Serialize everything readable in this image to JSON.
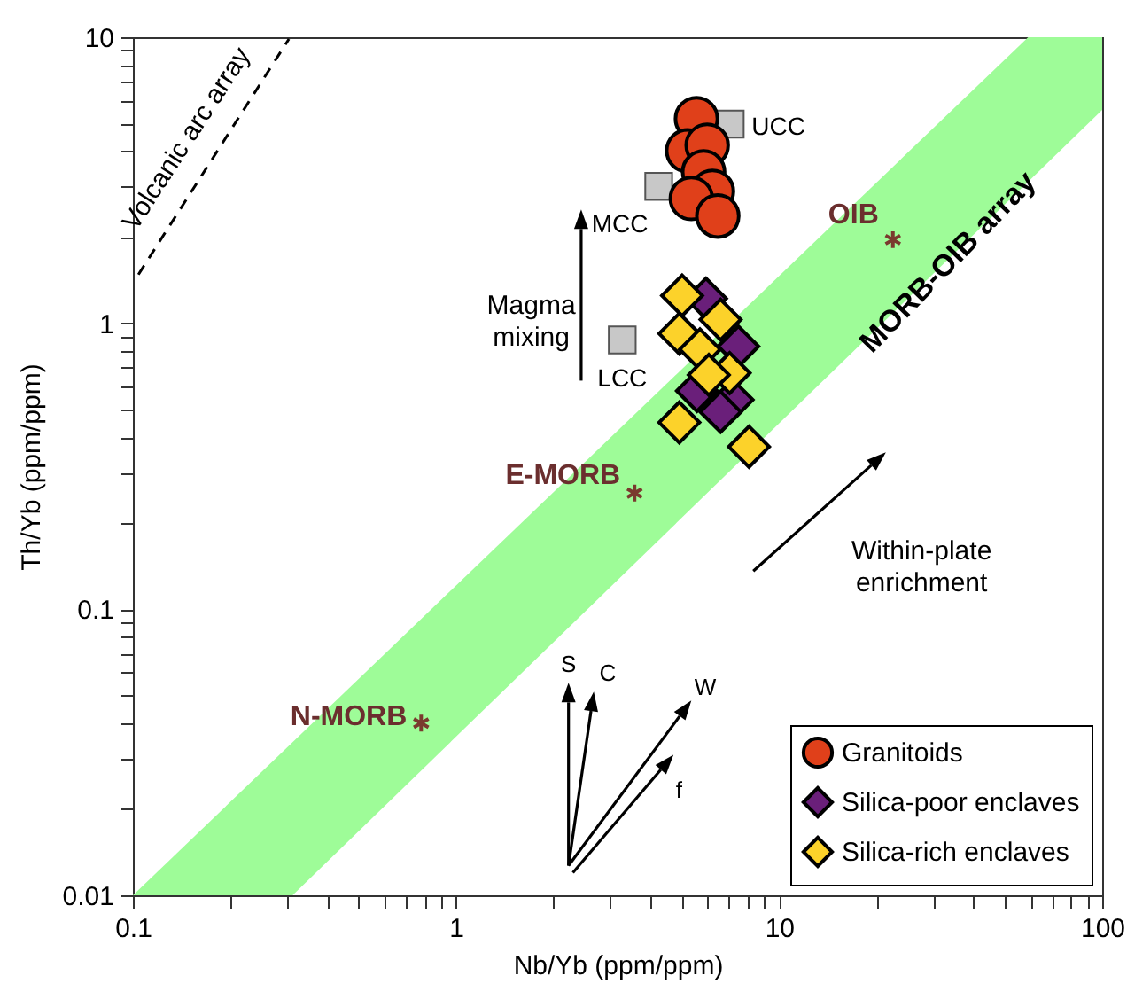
{
  "chart_data": {
    "type": "scatter",
    "xlabel": "Nb/Yb (ppm/ppm)",
    "ylabel": "Th/Yb (ppm/ppm)",
    "log": "xy",
    "grid": false,
    "legend": "bottom right",
    "xlim": [
      0.1,
      100
    ],
    "ylim": [
      0.01,
      10
    ],
    "xticks": [
      0.1,
      {
        "value": 0.2,
        "label": null
      },
      {
        "value": 0.3,
        "label": null
      },
      {
        "value": 0.4,
        "label": null
      },
      {
        "value": 0.5,
        "label": null
      },
      {
        "value": 0.6,
        "label": null
      },
      {
        "value": 0.7,
        "label": null
      },
      {
        "value": 0.8,
        "label": null
      },
      {
        "value": 0.9,
        "label": null
      },
      1,
      {
        "value": 2,
        "label": null
      },
      {
        "value": 3,
        "label": null
      },
      {
        "value": 4,
        "label": null
      },
      {
        "value": 5,
        "label": null
      },
      {
        "value": 6,
        "label": null
      },
      {
        "value": 7,
        "label": null
      },
      {
        "value": 8,
        "label": null
      },
      {
        "value": 9,
        "label": null
      },
      10,
      {
        "value": 20,
        "label": null
      },
      {
        "value": 30,
        "label": null
      },
      {
        "value": 40,
        "label": null
      },
      {
        "value": 50,
        "label": null
      },
      {
        "value": 60,
        "label": null
      },
      {
        "value": 70,
        "label": null
      },
      {
        "value": 80,
        "label": null
      },
      {
        "value": 90,
        "label": null
      },
      100
    ],
    "yticks": [
      0.01,
      {
        "value": 0.02,
        "label": null
      },
      {
        "value": 0.03,
        "label": null
      },
      {
        "value": 0.04,
        "label": null
      },
      {
        "value": 0.05,
        "label": null
      },
      {
        "value": 0.06,
        "label": null
      },
      {
        "value": 0.07,
        "label": null
      },
      {
        "value": 0.08,
        "label": null
      },
      {
        "value": 0.09,
        "label": null
      },
      0.1,
      {
        "value": 0.2,
        "label": null
      },
      {
        "value": 0.3,
        "label": null
      },
      {
        "value": 0.4,
        "label": null
      },
      {
        "value": 0.5,
        "label": null
      },
      {
        "value": 0.6,
        "label": null
      },
      {
        "value": 0.7,
        "label": null
      },
      {
        "value": 0.8,
        "label": null
      },
      {
        "value": 0.9,
        "label": null
      },
      1,
      {
        "value": 2,
        "label": null
      },
      {
        "value": 3,
        "label": null
      },
      {
        "value": 4,
        "label": null
      },
      {
        "value": 5,
        "label": null
      },
      {
        "value": 6,
        "label": null
      },
      {
        "value": 7,
        "label": null
      },
      {
        "value": 8,
        "label": null
      },
      {
        "value": 9,
        "label": null
      },
      10
    ],
    "series": [
      {
        "type": "area",
        "color": "#9efc98",
        "x": [
          0.1,
          0.312,
          100,
          100,
          59,
          0.1
        ],
        "values": [
          0.01,
          0.01,
          5.57,
          10,
          10,
          0.01
        ]
      },
      {
        "type": "line",
        "color": "#000000",
        "line_style": "dashed",
        "x": [
          0.104,
          0.304
        ],
        "values": [
          1.48,
          9.86
        ]
      },
      {
        "marker": "square",
        "color": "#c8c8c8",
        "x": [
          7.06,
          4.24,
          3.27
        ],
        "values": [
          4.97,
          3.01,
          0.874
        ]
      },
      {
        "marker": "cross",
        "color": "#7a3a2e",
        "x": [
          0.78,
          3.57,
          22.5
        ],
        "values": [
          0.04,
          0.255,
          1.96
        ]
      },
      {
        "name": "Granitoids",
        "marker": "circle",
        "color": "#e0401a",
        "x": [
          5.55,
          5.21,
          5.99,
          5.84,
          6.22,
          5.35,
          6.46
        ],
        "values": [
          5.19,
          4.01,
          4.19,
          3.38,
          2.89,
          2.73,
          2.37
        ]
      },
      {
        "name": "Silica-poor enclaves",
        "marker": "diamond",
        "color": "#6a1f7a",
        "x": [
          5.94,
          7.48,
          5.57,
          7.18,
          6.59
        ],
        "values": [
          1.22,
          0.83,
          0.58,
          0.54,
          0.49
        ]
      },
      {
        "name": "Silica-rich enclaves",
        "marker": "diamond",
        "color": "#fcd22a",
        "x": [
          5.01,
          6.59,
          4.91,
          5.69,
          7.03,
          6.06,
          4.91,
          8.07
        ],
        "values": [
          1.25,
          1.03,
          0.92,
          0.81,
          0.67,
          0.66,
          0.45,
          0.37
        ]
      }
    ],
    "annotations": [
      "Volcanic arc array",
      {
        "text": "MORB-OIB array",
        "x": 33.4,
        "y": 1.63
      },
      {
        "text": "N-MORB",
        "x": 0.78,
        "y": 0.04
      },
      {
        "text": "E-MORB",
        "x": 3.57,
        "y": 0.255
      },
      {
        "text": "OIB",
        "x": 22.5,
        "y": 1.96
      },
      {
        "text": "UCC",
        "x": 7.06,
        "y": 4.97
      },
      {
        "text": "MCC",
        "x": 4.24,
        "y": 3.01
      },
      {
        "text": "LCC",
        "x": 3.27,
        "y": 0.874
      },
      "Magma mixing",
      "Within-plate enrichment",
      "S",
      "C",
      "W",
      "f"
    ]
  }
}
